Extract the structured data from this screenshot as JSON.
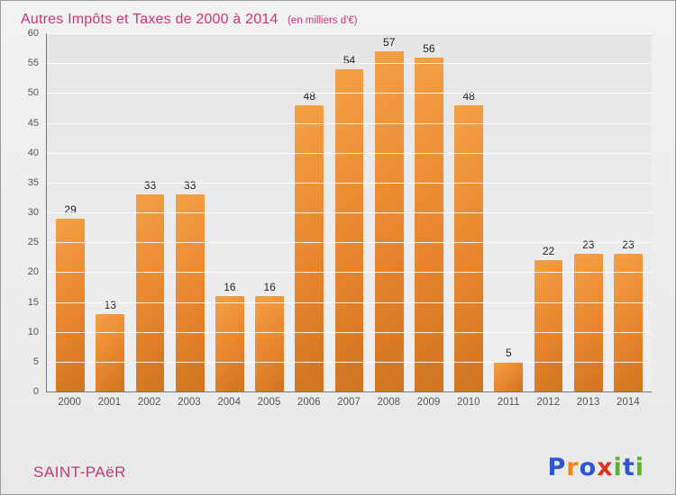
{
  "header": {
    "title": "Autres Impôts et Taxes de 2000 à 2014",
    "subtitle": "(en milliers d'€)"
  },
  "chart_data": {
    "type": "bar",
    "title": "Autres Impôts et Taxes de 2000 à 2014",
    "subtitle": "(en milliers d'€)",
    "categories": [
      "2000",
      "2001",
      "2002",
      "2003",
      "2004",
      "2005",
      "2006",
      "2007",
      "2008",
      "2009",
      "2010",
      "2011",
      "2012",
      "2013",
      "2014"
    ],
    "values": [
      29,
      13,
      33,
      33,
      16,
      16,
      48,
      54,
      57,
      56,
      48,
      5,
      22,
      23,
      23
    ],
    "xlabel": "",
    "ylabel": "",
    "ylim": [
      0,
      60
    ],
    "ytick_step": 5,
    "grid": true,
    "legend": "none",
    "bar_color": "#e8862e",
    "title_color": "#d4317c"
  },
  "footer": {
    "place": "SAINT-PAëR"
  },
  "logo": {
    "text": "Proxiti",
    "letters": [
      {
        "ch": "P",
        "color": "#2f55d4"
      },
      {
        "ch": "r",
        "color": "#f08518"
      },
      {
        "ch": "o",
        "color": "#2f55d4"
      },
      {
        "ch": "x",
        "color": "#e03024"
      },
      {
        "ch": "i",
        "color": "#56b52a"
      },
      {
        "ch": "t",
        "color": "#2f55d4"
      },
      {
        "ch": "i",
        "color": "#56b52a"
      }
    ]
  }
}
